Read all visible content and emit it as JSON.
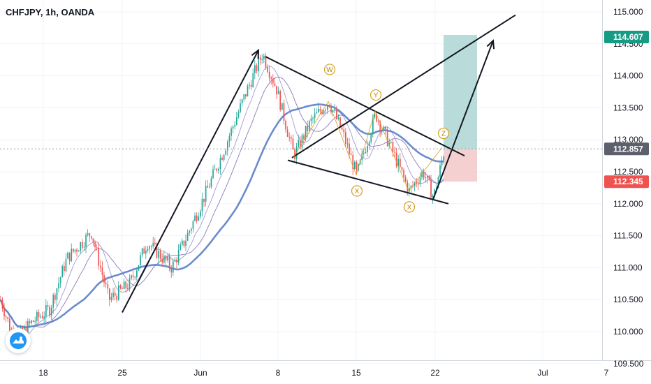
{
  "header": {
    "symbol_title": "CHFJPY, 1h, OANDA"
  },
  "colors": {
    "up": "#26a69a",
    "down": "#ef5350",
    "ma_thick": "#5b7fc8",
    "ma_thin1": "#7d6bb0",
    "ma_thin2": "#9a8ed0",
    "target_zone": "#a7d3d1",
    "stop_zone": "#f2c4c4",
    "tag_green": "#169c84",
    "tag_grey": "#5d606b",
    "tag_red": "#ef5350",
    "wave_label": "#d4a017",
    "trend_line": "#131722"
  },
  "chart_data": {
    "type": "candlestick",
    "symbol": "CHFJPY",
    "timeframe": "1h",
    "source": "OANDA",
    "ylim": [
      109.05,
      115.25
    ],
    "y_ticks": [
      "115.000",
      "114.500",
      "114.000",
      "113.500",
      "113.000",
      "112.500",
      "112.000",
      "111.500",
      "111.000",
      "110.500",
      "110.000",
      "109.500"
    ],
    "x_ticks": [
      "18",
      "25",
      "Jun",
      "8",
      "15",
      "22",
      "Jul",
      "7"
    ],
    "price_tags": [
      {
        "label": "114.607",
        "value": 114.607,
        "role": "target"
      },
      {
        "label": "112.857",
        "value": 112.857,
        "role": "current"
      },
      {
        "label": "112.345",
        "value": 112.345,
        "role": "stop"
      }
    ],
    "key_points": [
      {
        "x": 0,
        "y": 110.5
      },
      {
        "x": 20,
        "y": 109.85
      },
      {
        "x": 45,
        "y": 110.15
      },
      {
        "x": 70,
        "y": 110.35
      },
      {
        "x": 95,
        "y": 111.15
      },
      {
        "x": 130,
        "y": 111.55
      },
      {
        "x": 155,
        "y": 110.5
      },
      {
        "x": 185,
        "y": 110.75
      },
      {
        "x": 210,
        "y": 111.4
      },
      {
        "x": 245,
        "y": 111.0
      },
      {
        "x": 265,
        "y": 111.45
      },
      {
        "x": 295,
        "y": 112.2
      },
      {
        "x": 320,
        "y": 112.85
      },
      {
        "x": 350,
        "y": 113.7
      },
      {
        "x": 375,
        "y": 114.35
      },
      {
        "x": 395,
        "y": 113.8
      },
      {
        "x": 420,
        "y": 112.75
      },
      {
        "x": 445,
        "y": 113.3
      },
      {
        "x": 470,
        "y": 113.6
      },
      {
        "x": 490,
        "y": 113.1
      },
      {
        "x": 510,
        "y": 112.45
      },
      {
        "x": 537,
        "y": 113.4
      },
      {
        "x": 560,
        "y": 112.85
      },
      {
        "x": 585,
        "y": 112.2
      },
      {
        "x": 605,
        "y": 112.5
      },
      {
        "x": 620,
        "y": 112.1
      },
      {
        "x": 635,
        "y": 112.82
      }
    ],
    "wave_labels": [
      {
        "text": "W",
        "x": 472,
        "y": 114.1
      },
      {
        "text": "Y",
        "x": 538,
        "y": 113.7
      },
      {
        "text": "X",
        "x": 511,
        "y": 112.2
      },
      {
        "text": "X",
        "x": 586,
        "y": 111.95
      },
      {
        "text": "Z",
        "x": 635,
        "y": 113.1
      }
    ]
  },
  "drawings": {
    "impulse_line": [
      [
        175,
        110.3
      ],
      [
        370,
        114.4
      ]
    ],
    "upper_channel": [
      [
        380,
        114.3
      ],
      [
        665,
        112.75
      ]
    ],
    "lower_channel": [
      [
        412,
        112.68
      ],
      [
        642,
        112.0
      ]
    ],
    "projection_line": [
      [
        418,
        112.72
      ],
      [
        738,
        114.95
      ]
    ],
    "target_arrow": [
      [
        620,
        112.07
      ],
      [
        706,
        114.55
      ]
    ],
    "entry_x": 636,
    "zone_x": [
      635,
      683
    ]
  }
}
